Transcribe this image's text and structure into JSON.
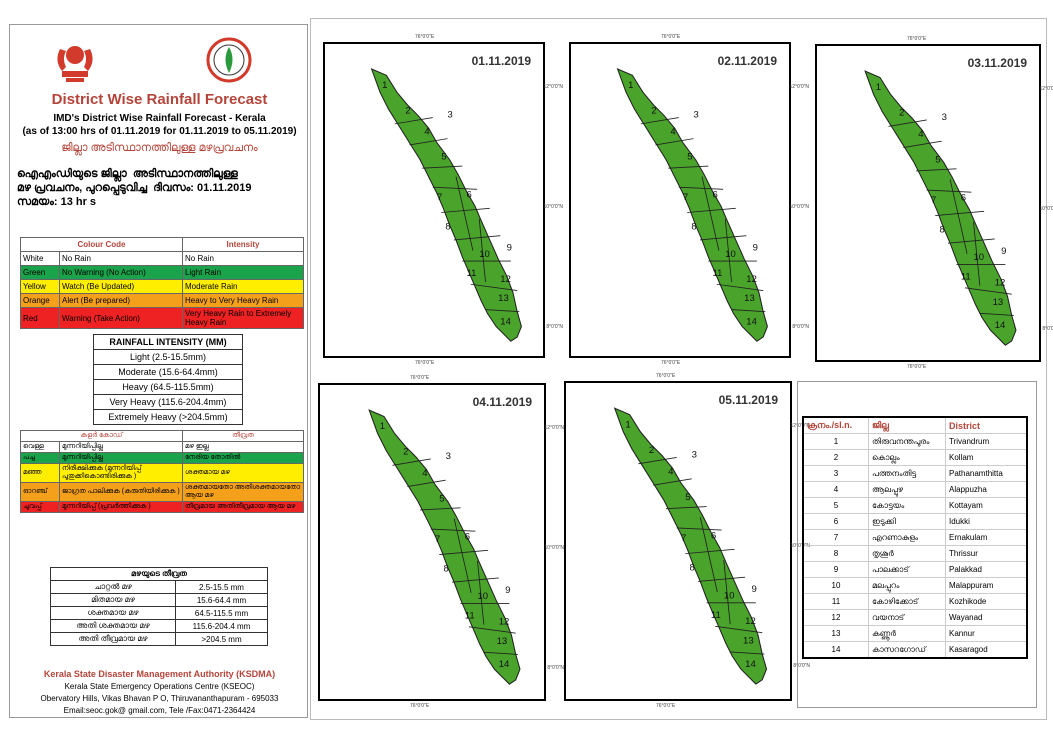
{
  "header": {
    "title": "District Wise Rainfall Forecast",
    "subtitle": "IMD's District Wise Rainfall Forecast - Kerala",
    "issued": "(as of 13:00 hrs of 01.11.2019  for 01.11.2019  to 05.11.2019)",
    "title_ml": "ജില്ലാ അടിസ്ഥാനത്തിലുള്ള മഴപ്രവചനം",
    "desc_ml": "ഐഎംഡിയുടെ ജില്ലാ  അടിസ്ഥാനത്തിലുള്ള\nമഴ പ്രവചനം, പുറപ്പെടുവിച്ച  ദിവസം: 01.11.2019\nസമയം: 13 hr s"
  },
  "colour_code": {
    "headers": [
      "Colour Code",
      "Intensity"
    ],
    "rows": [
      {
        "colour": "White",
        "action": "No Rain",
        "intensity": "No Rain",
        "bg": "#ffffff"
      },
      {
        "colour": "Green",
        "action": "No Warning (No Action)",
        "intensity": "Light Rain",
        "bg": "#1aa34a"
      },
      {
        "colour": "Yellow",
        "action": "Watch (Be Updated)",
        "intensity": "Moderate Rain",
        "bg": "#ffee00"
      },
      {
        "colour": "Orange",
        "action": "Alert (Be prepared)",
        "intensity": "Heavy to Very Heavy Rain",
        "bg": "#f5a01a"
      },
      {
        "colour": "Red",
        "action": "Warning (Take Action)",
        "intensity": "Very Heavy Rain to Extremely Heavy Rain",
        "bg": "#ee2222"
      }
    ]
  },
  "rainfall_intensity": {
    "title": "RAINFALL INTENSITY (MM)",
    "rows": [
      "Light (2.5-15.5mm)",
      "Moderate (15.6-64.4mm)",
      "Heavy (64.5-115.5mm)",
      "Very Heavy (115.6-204.4mm)",
      "Extremely Heavy (>204.5mm)"
    ]
  },
  "colour_code_ml": {
    "headers": [
      "കളർ കോഡ്",
      "തീവ്രത"
    ],
    "rows": [
      {
        "colour": "വെള്ള",
        "action": "മുന്നറിയിപ്പില്ല",
        "intensity": "മഴ ഇല്ല",
        "bg": "#ffffff"
      },
      {
        "colour": "പച്ച",
        "action": "മുന്നറിയിപ്പില്ല",
        "intensity": "നേരിയ തോതിൽ",
        "bg": "#1aa34a"
      },
      {
        "colour": "മഞ്ഞ",
        "action": "നിരീക്ഷിക്കുക (മുന്നറിയിപ്പ് പുതുക്കികൊണ്ടിരിക്കുക )",
        "intensity": "ശക്തമായ മഴ",
        "bg": "#ffee00"
      },
      {
        "colour": "ഓറഞ്ച്",
        "action": "ജാഗ്രത പാലിക്കുക (കരുതിയിരിക്കുക )",
        "intensity": "ശക്തമായതോ അതിശക്തമായതോ ആയ മഴ",
        "bg": "#f5a01a"
      },
      {
        "colour": "ചുവപ്പ്",
        "action": "മുന്നറിയിപ്പ് (പ്രവർത്തിക്കുക )",
        "intensity": "തീവ്രമായ അതിതീവ്രമായ ആയ മഴ",
        "bg": "#ee2222"
      }
    ]
  },
  "intensity_ml": {
    "title": "മഴയുടെ തീവ്രത",
    "rows": [
      [
        "ചാറ്റൽ മഴ",
        "2.5-15.5 mm"
      ],
      [
        "മിതമായ മഴ",
        "15.6-64.4 mm"
      ],
      [
        "ശക്തമായ മഴ",
        "64.5-115.5 mm"
      ],
      [
        "അതി ശക്തമായ മഴ",
        "115.6-204.4 mm"
      ],
      [
        "അതി തീവ്രമായ മഴ",
        ">204.5 mm"
      ]
    ]
  },
  "footer": {
    "org": "Kerala State Disaster Management Authority (KSDMA)",
    "centre": "Kerala State Emergency Operations Centre (KSEOC)",
    "address": "Obervatory Hills, Vikas Bhavan P O, Thiruvananthapuram - 695033",
    "contact": "Email:seoc.gok@ gmail.com, Tele /Fax:0471-2364424"
  },
  "maps": [
    {
      "date": "01.11.2019",
      "fill": "#4aa32b"
    },
    {
      "date": "02.11.2019",
      "fill": "#4aa32b"
    },
    {
      "date": "03.11.2019",
      "fill": "#4aa32b"
    },
    {
      "date": "04.11.2019",
      "fill": "#4aa32b"
    },
    {
      "date": "05.11.2019",
      "fill": "#4aa32b"
    }
  ],
  "axis": {
    "lon": "76°0'0\"E",
    "lat_top": "12°0'0\"N",
    "lat_mid": "10°0'0\"N",
    "lat_bot": "8°0'0\"N"
  },
  "districts": {
    "headers": [
      "ക്രനം./sl.n.",
      "ജില്ല",
      "District"
    ],
    "rows": [
      [
        "1",
        "തിരുവനന്തപുരം",
        "Trivandrum"
      ],
      [
        "2",
        "കൊല്ലം",
        "Kollam"
      ],
      [
        "3",
        "പത്തനംതിട്ട",
        "Pathanamthitta"
      ],
      [
        "4",
        "ആലപ്പുഴ",
        "Alappuzha"
      ],
      [
        "5",
        "കോട്ടയം",
        "Kottayam"
      ],
      [
        "6",
        "ഇടുക്കി",
        "Idukki"
      ],
      [
        "7",
        "എറണാകുളം",
        "Ernakulam"
      ],
      [
        "8",
        "തൃശൂർ",
        "Thrissur"
      ],
      [
        "9",
        "പാലക്കാട്",
        "Palakkad"
      ],
      [
        "10",
        "മലപ്പുറം",
        "Malappuram"
      ],
      [
        "11",
        "കോഴിക്കോട്",
        "Kozhikode"
      ],
      [
        "12",
        "വയനാട്",
        "Wayanad"
      ],
      [
        "13",
        "കണ്ണൂർ",
        "Kannur"
      ],
      [
        "14",
        "കാസറഗോഡ്",
        "Kasaragod"
      ]
    ]
  }
}
